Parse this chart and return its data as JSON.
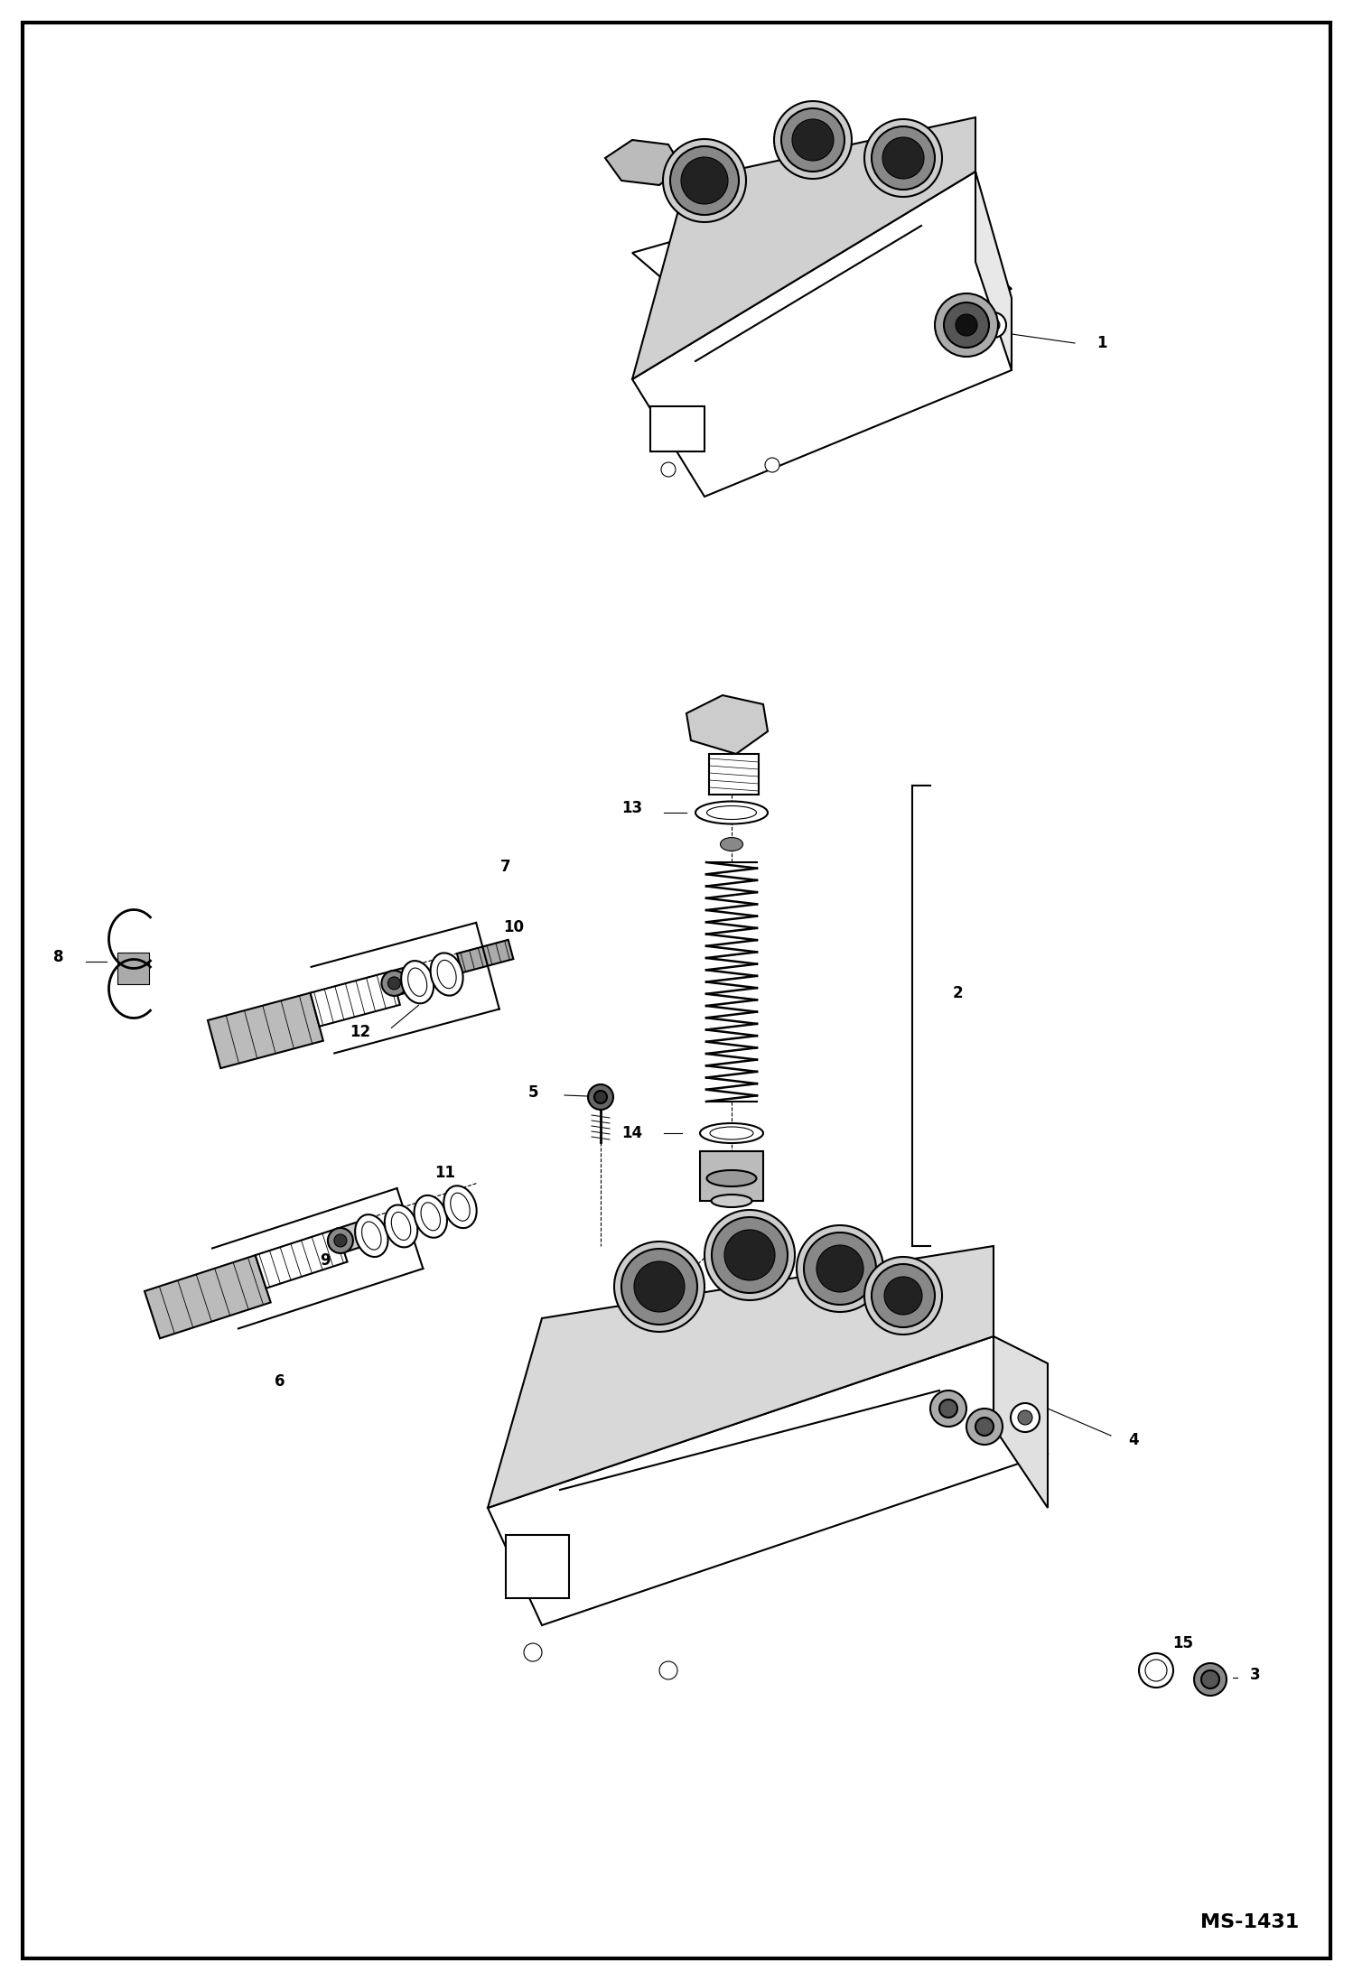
{
  "background_color": "#ffffff",
  "border_color": "#000000",
  "border_linewidth": 3,
  "figure_width": 14.98,
  "figure_height": 21.94,
  "dpi": 100,
  "watermark": "MS-1431",
  "watermark_fontsize": 16,
  "watermark_fontweight": "bold",
  "label_fontsize": 12,
  "label_fontweight": "bold",
  "lw_main": 1.5,
  "lw_thin": 0.8,
  "lw_dashed": 0.8
}
